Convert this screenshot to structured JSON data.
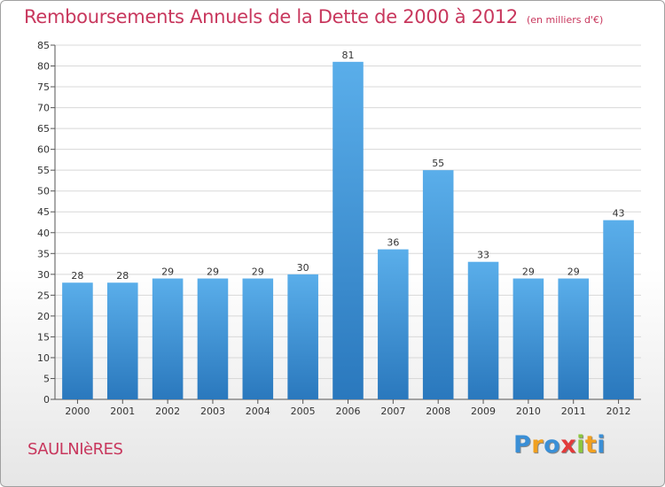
{
  "chart_data": {
    "type": "bar",
    "title": "Remboursements Annuels de la Dette de 2000 à 2012",
    "subtitle": "(en milliers d'€)",
    "categories": [
      "2000",
      "2001",
      "2002",
      "2003",
      "2004",
      "2005",
      "2006",
      "2007",
      "2008",
      "2009",
      "2010",
      "2011",
      "2012"
    ],
    "values": [
      28,
      28,
      29,
      29,
      29,
      30,
      81,
      36,
      55,
      33,
      29,
      29,
      43
    ],
    "ylim": [
      0,
      85
    ],
    "yticks": [
      0,
      5,
      10,
      15,
      20,
      25,
      30,
      35,
      40,
      45,
      50,
      55,
      60,
      65,
      70,
      75,
      80,
      85
    ],
    "grid": true,
    "bar_color": "#4a9de0"
  },
  "commune": "SAULNIèRES",
  "brand": {
    "letters": [
      "P",
      "r",
      "o",
      "x",
      "i",
      "t",
      "i"
    ],
    "colors": [
      "#3a8fd6",
      "#f0a020",
      "#3a8fd6",
      "#e23a3a",
      "#8cc63f",
      "#f0a020",
      "#3a8fd6"
    ]
  }
}
